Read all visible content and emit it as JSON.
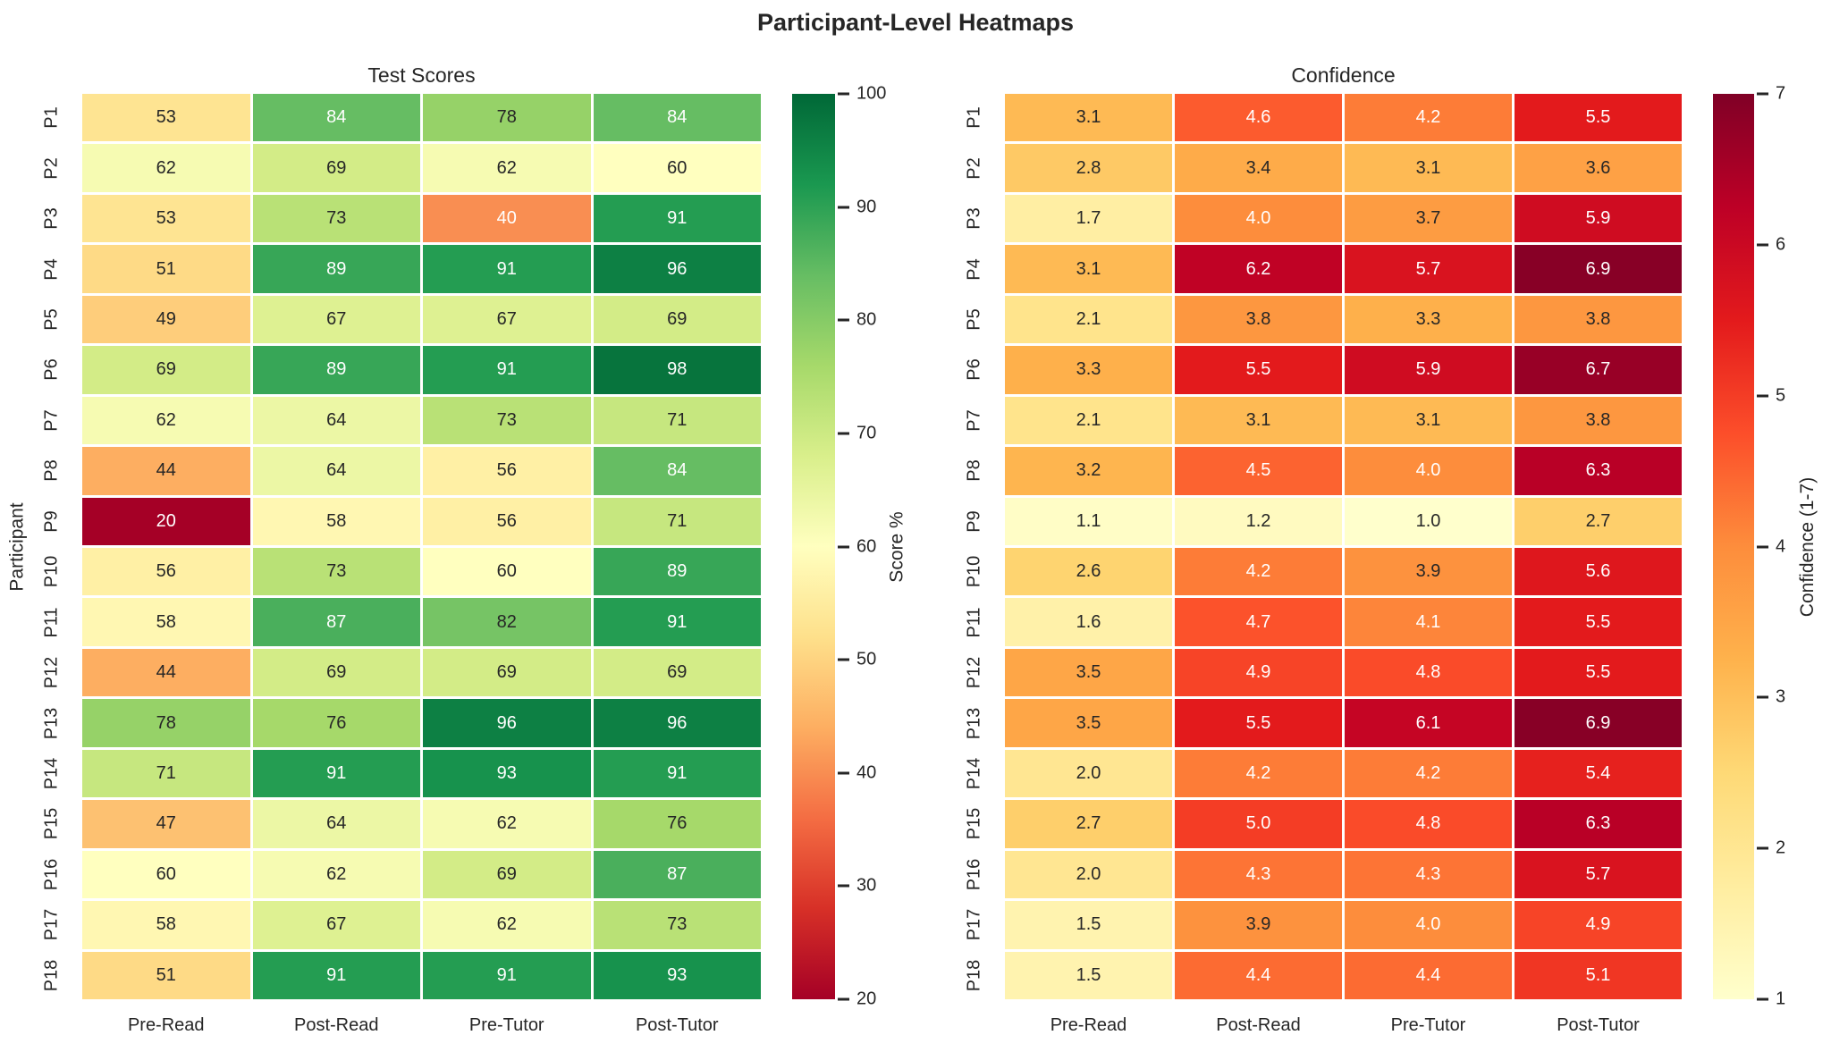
{
  "title": "Participant-Level Heatmaps",
  "text_colors": {
    "dark": "#262626",
    "light": "#ffffff"
  },
  "colormaps": {
    "RdYlGn": [
      "#a50026",
      "#d73027",
      "#f46d43",
      "#fdae61",
      "#fee08b",
      "#ffffbf",
      "#d9ef8b",
      "#a6d96a",
      "#66bd63",
      "#1a9850",
      "#006837"
    ],
    "YlOrRd": [
      "#ffffcc",
      "#ffeda0",
      "#fed976",
      "#feb24c",
      "#fd8d3c",
      "#fc4e2a",
      "#e31a1c",
      "#bd0026",
      "#800026"
    ]
  },
  "chart_data": [
    {
      "type": "heatmap",
      "title": "Test Scores",
      "ylabel": "Participant",
      "columns": [
        "Pre-Read",
        "Post-Read",
        "Pre-Tutor",
        "Post-Tutor"
      ],
      "rows": [
        "P1",
        "P2",
        "P3",
        "P4",
        "P5",
        "P6",
        "P7",
        "P8",
        "P9",
        "P10",
        "P11",
        "P12",
        "P13",
        "P14",
        "P15",
        "P16",
        "P17",
        "P18"
      ],
      "values": [
        [
          53,
          84,
          78,
          84
        ],
        [
          62,
          69,
          62,
          60
        ],
        [
          53,
          73,
          40,
          91
        ],
        [
          51,
          89,
          91,
          96
        ],
        [
          49,
          67,
          67,
          69
        ],
        [
          69,
          89,
          91,
          98
        ],
        [
          62,
          64,
          73,
          71
        ],
        [
          44,
          64,
          56,
          84
        ],
        [
          20,
          58,
          56,
          71
        ],
        [
          56,
          73,
          60,
          89
        ],
        [
          58,
          87,
          82,
          91
        ],
        [
          44,
          69,
          69,
          69
        ],
        [
          78,
          76,
          96,
          96
        ],
        [
          71,
          91,
          93,
          91
        ],
        [
          47,
          64,
          62,
          76
        ],
        [
          60,
          62,
          69,
          87
        ],
        [
          58,
          67,
          62,
          73
        ],
        [
          51,
          91,
          91,
          93
        ]
      ],
      "vmin": 20,
      "vmax": 100,
      "decimals": 0,
      "colormap": "RdYlGn",
      "colorbar_label": "Score %",
      "colorbar_ticks": [
        100,
        90,
        80,
        70,
        60,
        50,
        40,
        30,
        20
      ]
    },
    {
      "type": "heatmap",
      "title": "Confidence",
      "ylabel": "",
      "columns": [
        "Pre-Read",
        "Post-Read",
        "Pre-Tutor",
        "Post-Tutor"
      ],
      "rows": [
        "P1",
        "P2",
        "P3",
        "P4",
        "P5",
        "P6",
        "P7",
        "P8",
        "P9",
        "P10",
        "P11",
        "P12",
        "P13",
        "P14",
        "P15",
        "P16",
        "P17",
        "P18"
      ],
      "values": [
        [
          3.1,
          4.6,
          4.2,
          5.5
        ],
        [
          2.8,
          3.4,
          3.1,
          3.6
        ],
        [
          1.7,
          4.0,
          3.7,
          5.9
        ],
        [
          3.1,
          6.2,
          5.7,
          6.9
        ],
        [
          2.1,
          3.8,
          3.3,
          3.8
        ],
        [
          3.3,
          5.5,
          5.9,
          6.7
        ],
        [
          2.1,
          3.1,
          3.1,
          3.8
        ],
        [
          3.2,
          4.5,
          4.0,
          6.3
        ],
        [
          1.1,
          1.2,
          1.0,
          2.7
        ],
        [
          2.6,
          4.2,
          3.9,
          5.6
        ],
        [
          1.6,
          4.7,
          4.1,
          5.5
        ],
        [
          3.5,
          4.9,
          4.8,
          5.5
        ],
        [
          3.5,
          5.5,
          6.1,
          6.9
        ],
        [
          2.0,
          4.2,
          4.2,
          5.4
        ],
        [
          2.7,
          5.0,
          4.8,
          6.3
        ],
        [
          2.0,
          4.3,
          4.3,
          5.7
        ],
        [
          1.5,
          3.9,
          4.0,
          4.9
        ],
        [
          1.5,
          4.4,
          4.4,
          5.1
        ]
      ],
      "vmin": 1,
      "vmax": 7,
      "decimals": 1,
      "colormap": "YlOrRd",
      "colorbar_label": "Confidence (1-7)",
      "colorbar_ticks": [
        7,
        6,
        5,
        4,
        3,
        2,
        1
      ]
    }
  ]
}
